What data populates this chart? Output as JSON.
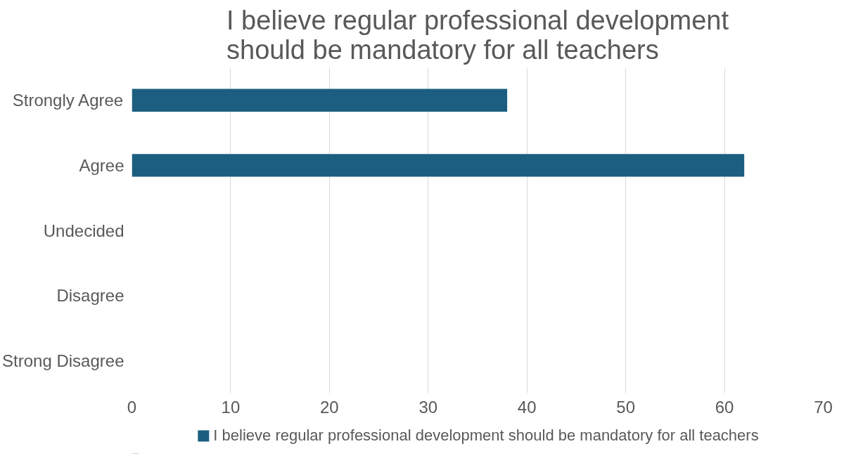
{
  "chart_data": {
    "type": "bar",
    "orientation": "horizontal",
    "title": "I believe regular professional development should be mandatory for all teachers",
    "categories": [
      "Strongly Agree",
      "Agree",
      "Undecided",
      "Disagree",
      "Strong Disagree"
    ],
    "series": [
      {
        "name": "I believe regular professional development should be mandatory for all teachers",
        "color": "#1b5e80",
        "values": [
          38,
          62,
          0,
          0,
          0
        ]
      }
    ],
    "xlim": [
      0,
      70
    ],
    "xticks": [
      0,
      10,
      20,
      30,
      40,
      50,
      60,
      70
    ],
    "grid": "x",
    "legend": "bottom"
  }
}
